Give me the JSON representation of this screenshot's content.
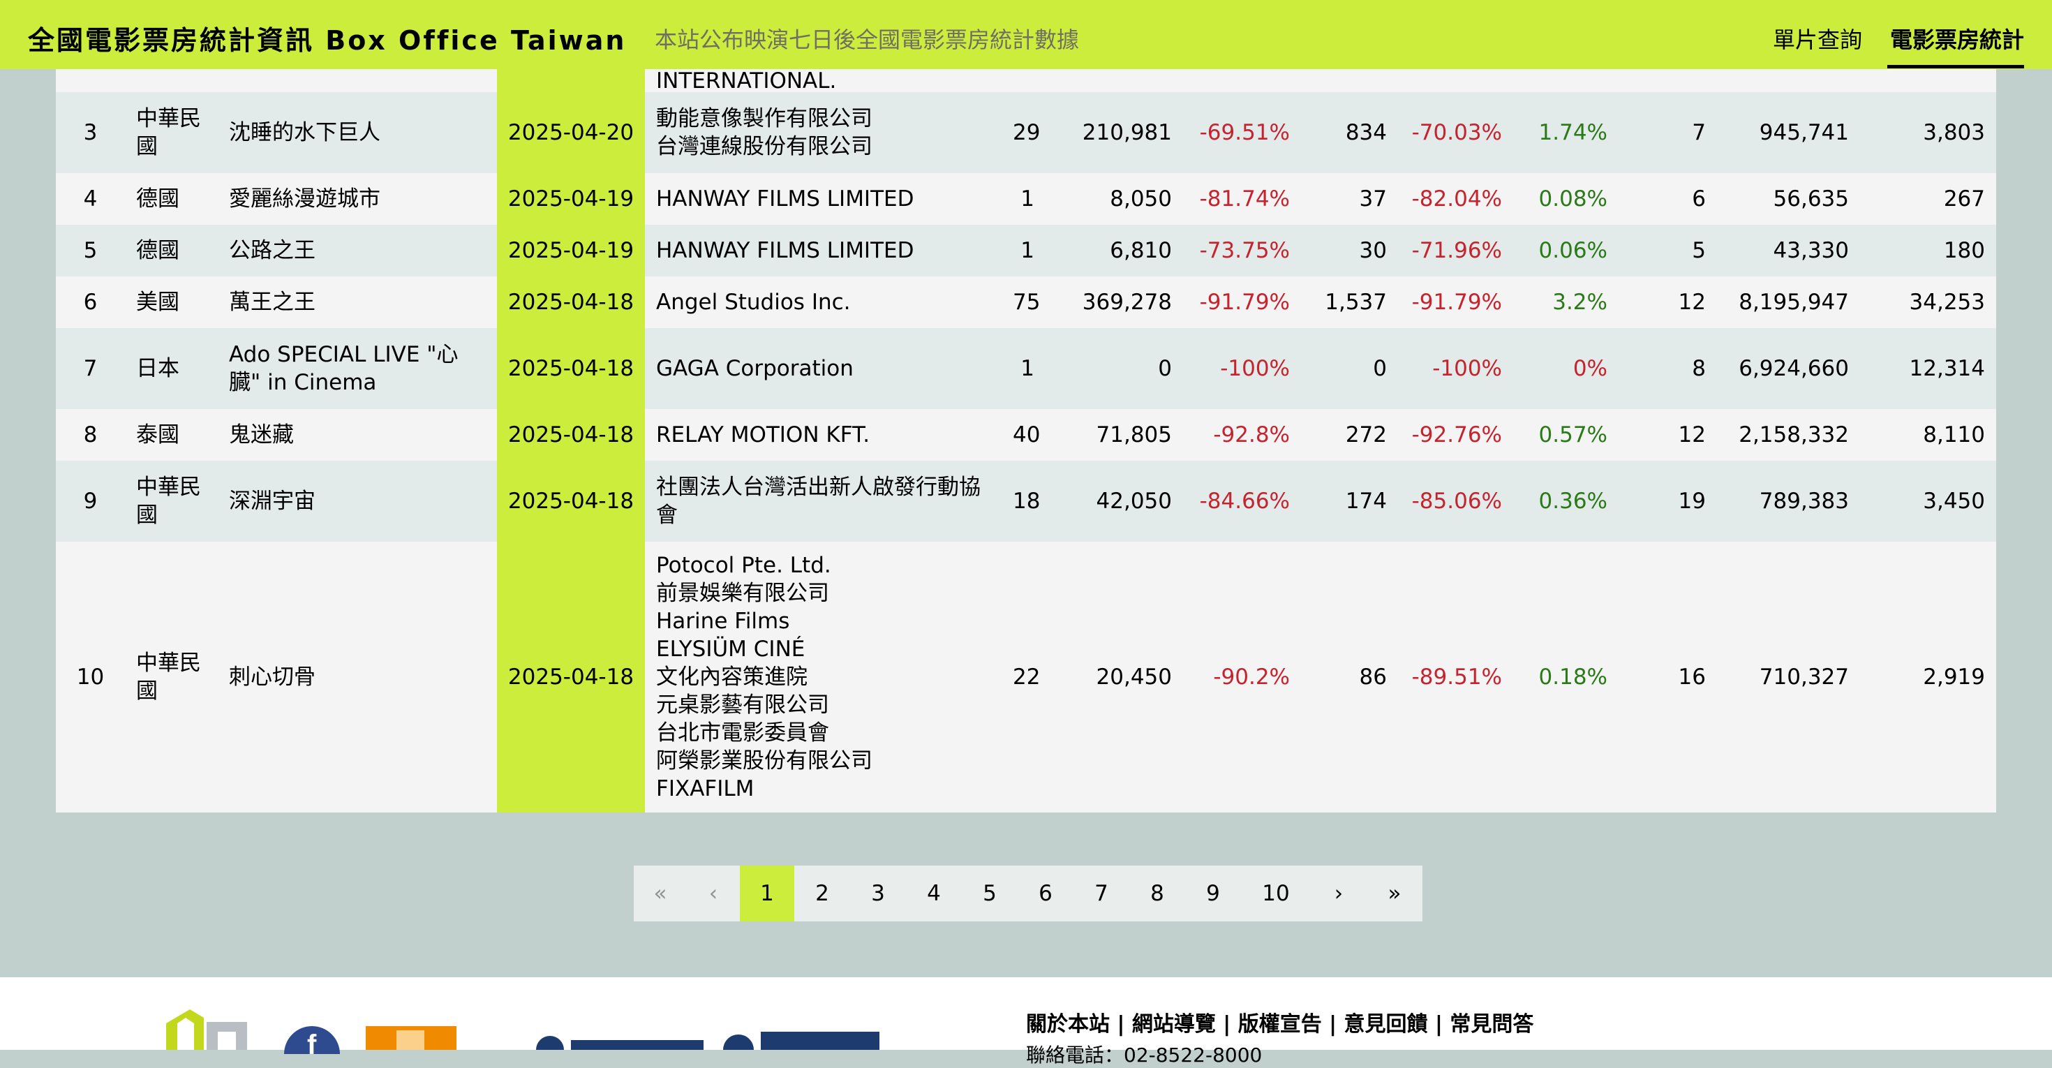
{
  "header": {
    "brand": "全國電影票房統計資訊 Box Office Taiwan",
    "tagline": "本站公布映演七日後全國電影票房統計數據",
    "nav": [
      "單片查詢",
      "電影票房統計"
    ]
  },
  "table": {
    "partial_row_text": "INTERNATIONAL.",
    "rows": [
      {
        "rank": "3",
        "country": [
          "中華民",
          "國"
        ],
        "title": "沈睡的水下巨人",
        "date": "2025-04-20",
        "distributors": [
          "動能意像製作有限公司",
          "台灣連線股份有限公司"
        ],
        "theaters": "29",
        "revenue": "210,981",
        "rev_change": "-69.51%",
        "tickets": "834",
        "tix_change": "-70.03%",
        "share": "1.74%",
        "days": "7",
        "total_revenue": "945,741",
        "total_tickets": "3,803"
      },
      {
        "rank": "4",
        "country": [
          "德國"
        ],
        "title": "愛麗絲漫遊城市",
        "date": "2025-04-19",
        "distributors": [
          "HANWAY FILMS LIMITED"
        ],
        "theaters": "1",
        "revenue": "8,050",
        "rev_change": "-81.74%",
        "tickets": "37",
        "tix_change": "-82.04%",
        "share": "0.08%",
        "days": "6",
        "total_revenue": "56,635",
        "total_tickets": "267"
      },
      {
        "rank": "5",
        "country": [
          "德國"
        ],
        "title": "公路之王",
        "date": "2025-04-19",
        "distributors": [
          "HANWAY FILMS LIMITED"
        ],
        "theaters": "1",
        "revenue": "6,810",
        "rev_change": "-73.75%",
        "tickets": "30",
        "tix_change": "-71.96%",
        "share": "0.06%",
        "days": "5",
        "total_revenue": "43,330",
        "total_tickets": "180"
      },
      {
        "rank": "6",
        "country": [
          "美國"
        ],
        "title": "萬王之王",
        "date": "2025-04-18",
        "distributors": [
          "Angel Studios Inc."
        ],
        "theaters": "75",
        "revenue": "369,278",
        "rev_change": "-91.79%",
        "tickets": "1,537",
        "tix_change": "-91.79%",
        "share": "3.2%",
        "days": "12",
        "total_revenue": "8,195,947",
        "total_tickets": "34,253"
      },
      {
        "rank": "7",
        "country": [
          "日本"
        ],
        "title": "Ado SPECIAL LIVE \"心臓\" in Cinema",
        "date": "2025-04-18",
        "distributors": [
          "GAGA Corporation"
        ],
        "theaters": "1",
        "revenue": "0",
        "rev_change": "-100%",
        "tickets": "0",
        "tix_change": "-100%",
        "share": "0%",
        "days": "8",
        "total_revenue": "6,924,660",
        "total_tickets": "12,314"
      },
      {
        "rank": "8",
        "country": [
          "泰國"
        ],
        "title": "鬼迷藏",
        "date": "2025-04-18",
        "distributors": [
          "RELAY MOTION KFT."
        ],
        "theaters": "40",
        "revenue": "71,805",
        "rev_change": "-92.8%",
        "tickets": "272",
        "tix_change": "-92.76%",
        "share": "0.57%",
        "days": "12",
        "total_revenue": "2,158,332",
        "total_tickets": "8,110"
      },
      {
        "rank": "9",
        "country": [
          "中華民",
          "國"
        ],
        "title": "深淵宇宙",
        "date": "2025-04-18",
        "distributors": [
          "社團法人台灣活出新人啟發行動協會"
        ],
        "theaters": "18",
        "revenue": "42,050",
        "rev_change": "-84.66%",
        "tickets": "174",
        "tix_change": "-85.06%",
        "share": "0.36%",
        "days": "19",
        "total_revenue": "789,383",
        "total_tickets": "3,450"
      },
      {
        "rank": "10",
        "country": [
          "中華民",
          "國"
        ],
        "title": "刺心切骨",
        "date": "2025-04-18",
        "distributors": [
          "Potocol Pte. Ltd.",
          "前景娛樂有限公司",
          "Harine Films",
          "ELYSIÜM CINÉ",
          "文化內容策進院",
          "元桌影藝有限公司",
          "台北市電影委員會",
          "阿榮影業股份有限公司",
          "FIXAFILM"
        ],
        "theaters": "22",
        "revenue": "20,450",
        "rev_change": "-90.2%",
        "tickets": "86",
        "tix_change": "-89.51%",
        "share": "0.18%",
        "days": "16",
        "total_revenue": "710,327",
        "total_tickets": "2,919"
      }
    ]
  },
  "pagination": {
    "first": "«",
    "prev": "‹",
    "pages": [
      "1",
      "2",
      "3",
      "4",
      "5",
      "6",
      "7",
      "8",
      "9",
      "10"
    ],
    "current": "1",
    "next": "›",
    "last": "»"
  },
  "footer": {
    "links": "關於本站 | 網站導覽 | 版權宣告 | 意見回饋 | 常見問答",
    "phone": "聯絡電話：02-8522-8000"
  },
  "colors": {
    "accent": "#cced3c",
    "page_bg": "#c1cfcd",
    "negative": "#c5232e",
    "positive": "#2a7a18"
  }
}
